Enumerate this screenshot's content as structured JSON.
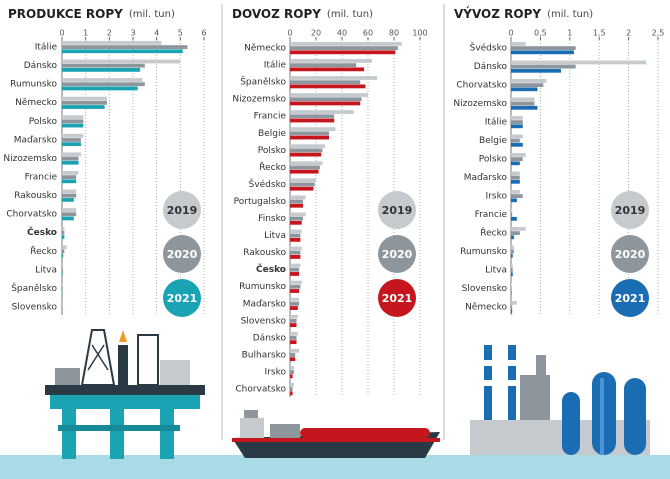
{
  "chart_data": [
    {
      "type": "bar",
      "orientation": "horizontal",
      "title": "PRODUKCE ROPY",
      "unit": "(mil. tun)",
      "categories": [
        "Itálie",
        "Dánsko",
        "Rumunsko",
        "Německo",
        "Polsko",
        "Maďarsko",
        "Nizozemsko",
        "Francie",
        "Rakousko",
        "Chorvatsko",
        "Česko",
        "Řecko",
        "Litva",
        "Španělsko",
        "Slovensko"
      ],
      "highlight": "Česko",
      "series": [
        {
          "name": "2019",
          "color": "#c5cacf",
          "values": [
            4.2,
            5.0,
            3.4,
            1.9,
            0.9,
            0.9,
            0.8,
            0.7,
            0.6,
            0.6,
            0.1,
            0.2,
            0.05,
            0.03,
            0.01
          ]
        },
        {
          "name": "2020",
          "color": "#8e969d",
          "values": [
            5.3,
            3.5,
            3.5,
            1.9,
            0.9,
            0.8,
            0.7,
            0.6,
            0.6,
            0.6,
            0.1,
            0.1,
            0.04,
            0.03,
            0.01
          ]
        },
        {
          "name": "2021",
          "color": "#1aa3b3",
          "values": [
            5.1,
            3.3,
            3.2,
            1.8,
            0.9,
            0.8,
            0.7,
            0.6,
            0.5,
            0.5,
            0.1,
            0.05,
            0.03,
            0.02,
            0.01
          ]
        }
      ],
      "xlim": [
        0,
        6
      ],
      "xticks": [
        0,
        1,
        2,
        3,
        4,
        5,
        6
      ],
      "grid": true
    },
    {
      "type": "bar",
      "orientation": "horizontal",
      "title": "DOVOZ ROPY",
      "unit": "(mil. tun)",
      "categories": [
        "Německo",
        "Itálie",
        "Španělsko",
        "Nizozemsko",
        "Francie",
        "Belgie",
        "Polsko",
        "Řecko",
        "Švédsko",
        "Portugalsko",
        "Finsko",
        "Litva",
        "Rakousko",
        "Česko",
        "Rumunsko",
        "Maďarsko",
        "Slovensko",
        "Dánsko",
        "Bulharsko",
        "Irsko",
        "Chorvatsko"
      ],
      "highlight": "Česko",
      "series": [
        {
          "name": "2019",
          "color": "#c5cacf",
          "values": [
            86,
            63,
            67,
            60,
            49,
            35,
            27,
            25,
            20,
            12,
            12,
            9,
            9,
            8,
            9,
            7,
            6,
            6,
            7,
            3,
            3
          ]
        },
        {
          "name": "2020",
          "color": "#8e969d",
          "values": [
            83,
            51,
            54,
            55,
            34,
            30,
            25,
            23,
            19,
            10,
            10,
            8,
            8,
            7,
            8,
            7,
            5,
            5,
            4,
            3,
            2
          ]
        },
        {
          "name": "2021",
          "color": "#c4161c",
          "values": [
            81,
            57,
            58,
            54,
            34,
            30,
            24,
            22,
            18,
            10,
            9,
            8,
            8,
            7,
            7,
            6,
            5,
            5,
            4,
            2,
            2
          ]
        }
      ],
      "xlim": [
        0,
        100
      ],
      "xticks": [
        0,
        20,
        40,
        60,
        80,
        100
      ],
      "grid": true
    },
    {
      "type": "bar",
      "orientation": "horizontal",
      "title": "VÝVOZ ROPY",
      "unit": "(mil. tun)",
      "categories": [
        "Švédsko",
        "Dánsko",
        "Chorvatsko",
        "Nizozemsko",
        "Itálie",
        "Belgie",
        "Polsko",
        "Maďarsko",
        "Irsko",
        "Francie",
        "Řecko",
        "Rumunsko",
        "Litva",
        "Slovensko",
        "Německo"
      ],
      "series": [
        {
          "name": "2019",
          "color": "#c5cacf",
          "values": [
            0.25,
            2.3,
            0.6,
            0.4,
            0.2,
            0.2,
            0.25,
            0.15,
            0.15,
            0.02,
            0.25,
            0.05,
            0.03,
            0.01,
            0.1
          ]
        },
        {
          "name": "2020",
          "color": "#8e969d",
          "values": [
            1.1,
            1.1,
            0.55,
            0.4,
            0.2,
            0.15,
            0.2,
            0.15,
            0.2,
            0.02,
            0.15,
            0.05,
            0.03,
            0.01,
            0.02
          ]
        },
        {
          "name": "2021",
          "color": "#1b6db3",
          "values": [
            1.07,
            0.85,
            0.45,
            0.45,
            0.2,
            0.2,
            0.15,
            0.15,
            0.1,
            0.1,
            0.05,
            0.03,
            0.03,
            0.01,
            0.02
          ]
        }
      ],
      "xlim": [
        0,
        2.5
      ],
      "xticks": [
        0,
        {
          "value": 0.5,
          "label": "0,5"
        },
        1,
        {
          "value": 1.5,
          "label": "1,5"
        },
        2,
        {
          "value": 2.5,
          "label": "2,5"
        }
      ],
      "grid": true
    }
  ]
}
